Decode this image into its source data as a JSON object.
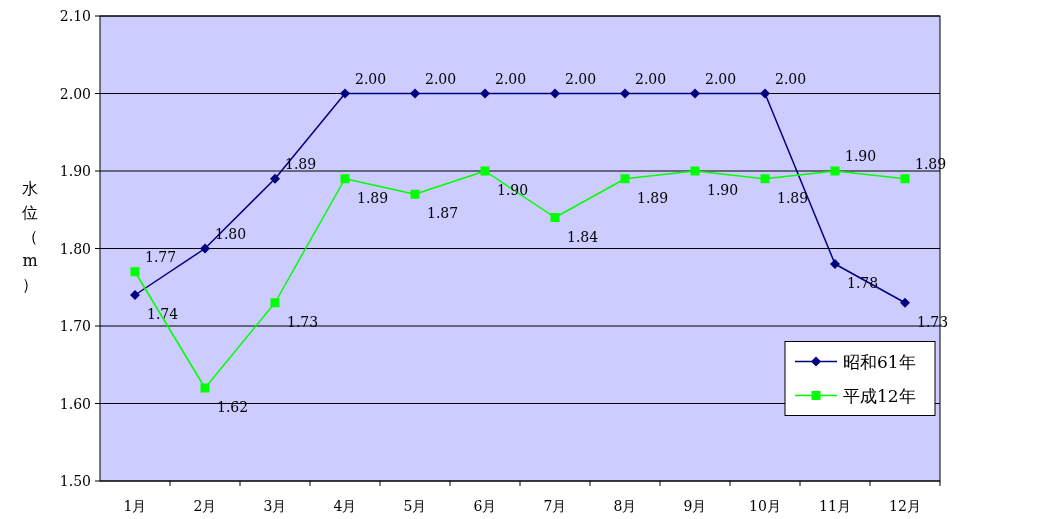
{
  "chart_data": {
    "type": "line",
    "ylabel": "水位（m）",
    "categories": [
      "1月",
      "2月",
      "3月",
      "4月",
      "5月",
      "6月",
      "7月",
      "8月",
      "9月",
      "10月",
      "11月",
      "12月"
    ],
    "series": [
      {
        "name": "昭和61年",
        "color": "#000080",
        "marker": "diamond",
        "values": [
          1.74,
          1.8,
          1.89,
          2.0,
          2.0,
          2.0,
          2.0,
          2.0,
          2.0,
          2.0,
          1.78,
          1.73
        ],
        "value_labels": [
          "1.74",
          "1.80",
          "1.89",
          "2.00",
          "2.00",
          "2.00",
          "2.00",
          "2.00",
          "2.00",
          "2.00",
          "1.78",
          "1.73"
        ]
      },
      {
        "name": "平成12年",
        "color": "#00ff00",
        "marker": "square",
        "values": [
          1.77,
          1.62,
          1.73,
          1.89,
          1.87,
          1.9,
          1.84,
          1.89,
          1.9,
          1.89,
          1.9,
          1.89
        ],
        "value_labels": [
          "1.77",
          "1.62",
          "1.73",
          "1.89",
          "1.87",
          "1.90",
          "1.84",
          "1.89",
          "1.90",
          "1.89",
          "1.90",
          "1.89"
        ]
      }
    ],
    "ylim": [
      1.5,
      2.1
    ],
    "yticks": [
      {
        "value": 1.5,
        "label": "1.50"
      },
      {
        "value": 1.6,
        "label": "1.60"
      },
      {
        "value": 1.7,
        "label": "1.70"
      },
      {
        "value": 1.8,
        "label": "1.80"
      },
      {
        "value": 1.9,
        "label": "1.90"
      },
      {
        "value": 2.0,
        "label": "2.00"
      },
      {
        "value": 2.1,
        "label": "2.10"
      }
    ],
    "grid": "y",
    "legend": "bottom right",
    "line_style": "solid"
  }
}
